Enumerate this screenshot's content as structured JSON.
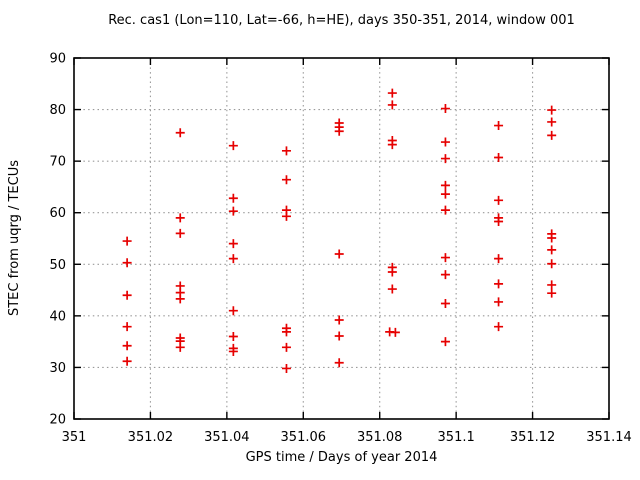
{
  "colors": {
    "background": "#ffffff",
    "border": "#000000",
    "grid": "#9a9a9a",
    "text": "#000000",
    "marker": "#e60000"
  },
  "chart_data": {
    "type": "scatter",
    "title": "Rec. cas1 (Lon=110, Lat=-66, h=HE), days 350-351, 2014, window 001",
    "xlabel": "GPS time / Days of year 2014",
    "ylabel": "STEC from uqrg / TECUs",
    "xlim": [
      351.0,
      351.14
    ],
    "ylim": [
      20,
      90
    ],
    "xticks": {
      "values": [
        351.0,
        351.02,
        351.04,
        351.06,
        351.08,
        351.1,
        351.12,
        351.14
      ],
      "labels": [
        "351",
        "351.02",
        "351.04",
        "351.06",
        "351.08",
        "351.1",
        "351.12",
        "351.14"
      ]
    },
    "yticks": {
      "values": [
        20,
        30,
        40,
        50,
        60,
        70,
        80,
        90
      ],
      "labels": [
        "20",
        "30",
        "40",
        "50",
        "60",
        "70",
        "80",
        "90"
      ]
    },
    "grid": true,
    "legend": false,
    "marker": {
      "shape": "plus",
      "color": "#e60000",
      "size": 9
    },
    "series": [
      {
        "name": "STEC",
        "points": [
          [
            351.0139,
            54.5
          ],
          [
            351.0139,
            50.3
          ],
          [
            351.0139,
            44.0
          ],
          [
            351.0139,
            37.9
          ],
          [
            351.0139,
            34.2
          ],
          [
            351.0139,
            31.2
          ],
          [
            351.0278,
            75.5
          ],
          [
            351.0278,
            59.0
          ],
          [
            351.0278,
            56.0
          ],
          [
            351.0278,
            45.8
          ],
          [
            351.0278,
            44.5
          ],
          [
            351.0278,
            43.3
          ],
          [
            351.0278,
            35.7
          ],
          [
            351.0278,
            35.1
          ],
          [
            351.0278,
            33.9
          ],
          [
            351.0417,
            73.0
          ],
          [
            351.0417,
            62.8
          ],
          [
            351.0417,
            60.3
          ],
          [
            351.0417,
            54.0
          ],
          [
            351.0417,
            51.1
          ],
          [
            351.0417,
            41.0
          ],
          [
            351.0417,
            36.0
          ],
          [
            351.0417,
            33.7
          ],
          [
            351.0417,
            33.1
          ],
          [
            351.0556,
            72.0
          ],
          [
            351.0556,
            66.4
          ],
          [
            351.0556,
            60.5
          ],
          [
            351.0556,
            59.3
          ],
          [
            351.0556,
            37.6
          ],
          [
            351.0556,
            36.9
          ],
          [
            351.0556,
            33.9
          ],
          [
            351.0556,
            29.8
          ],
          [
            351.0694,
            77.4
          ],
          [
            351.0694,
            76.6
          ],
          [
            351.0694,
            75.8
          ],
          [
            351.0694,
            52.0
          ],
          [
            351.0694,
            39.2
          ],
          [
            351.0694,
            36.1
          ],
          [
            351.0694,
            30.9
          ],
          [
            351.0833,
            83.2
          ],
          [
            351.0833,
            80.9
          ],
          [
            351.0833,
            74.0
          ],
          [
            351.0833,
            73.2
          ],
          [
            351.0833,
            49.4
          ],
          [
            351.0833,
            48.5
          ],
          [
            351.0833,
            45.2
          ],
          [
            351.0826,
            36.9
          ],
          [
            351.0841,
            36.8
          ],
          [
            351.0972,
            80.2
          ],
          [
            351.0972,
            73.7
          ],
          [
            351.0972,
            70.5
          ],
          [
            351.0972,
            65.3
          ],
          [
            351.0972,
            63.6
          ],
          [
            351.0972,
            60.5
          ],
          [
            351.0972,
            51.3
          ],
          [
            351.0972,
            48.0
          ],
          [
            351.0972,
            42.4
          ],
          [
            351.0972,
            35.0
          ],
          [
            351.1111,
            76.9
          ],
          [
            351.1111,
            70.7
          ],
          [
            351.1111,
            62.4
          ],
          [
            351.1111,
            59.0
          ],
          [
            351.1111,
            58.3
          ],
          [
            351.1111,
            51.1
          ],
          [
            351.1111,
            46.2
          ],
          [
            351.1111,
            42.7
          ],
          [
            351.1111,
            37.9
          ],
          [
            351.125,
            79.9
          ],
          [
            351.125,
            77.6
          ],
          [
            351.125,
            75.0
          ],
          [
            351.125,
            55.9
          ],
          [
            351.125,
            55.1
          ],
          [
            351.125,
            52.8
          ],
          [
            351.125,
            50.1
          ],
          [
            351.125,
            46.0
          ],
          [
            351.125,
            44.4
          ]
        ]
      }
    ]
  }
}
